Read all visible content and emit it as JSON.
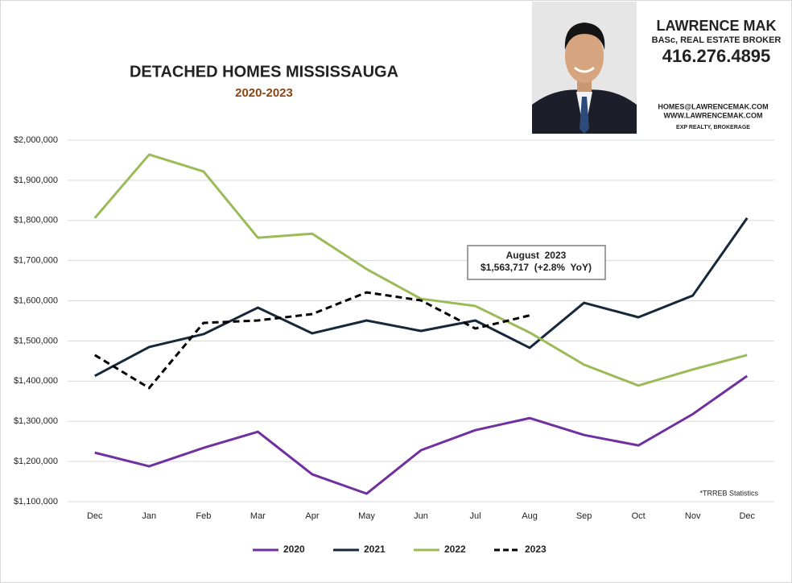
{
  "header": {
    "name": "LAWRENCE MAK",
    "credentials": "BASc, REAL ESTATE BROKER",
    "phone": "416.276.4895",
    "email": "HOMES@LAWRENCEMAK.COM",
    "website": "WWW.LAWRENCEMAK.COM",
    "brokerage": "EXP REALTY, BROKERAGE"
  },
  "chart_data": {
    "type": "line",
    "title": "DETACHED HOMES MISSISSAUGA",
    "subtitle": "2020-2023",
    "categories": [
      "Dec",
      "Jan",
      "Feb",
      "Mar",
      "Apr",
      "May",
      "Jun",
      "Jul",
      "Aug",
      "Sep",
      "Oct",
      "Nov",
      "Dec"
    ],
    "series": [
      {
        "name": "2020",
        "color": "#7030a0",
        "dashed": false,
        "values": [
          1222000,
          1188000,
          1234000,
          1274000,
          1168000,
          1120000,
          1228000,
          1278000,
          1308000,
          1266000,
          1240000,
          1318000,
          1413000
        ]
      },
      {
        "name": "2021",
        "color": "#17283a",
        "dashed": false,
        "values": [
          1413000,
          1485000,
          1517000,
          1583000,
          1519000,
          1551000,
          1525000,
          1551000,
          1483000,
          1595000,
          1559000,
          1613000,
          1806000
        ]
      },
      {
        "name": "2022",
        "color": "#9bbb59",
        "dashed": false,
        "values": [
          1806000,
          1964000,
          1922000,
          1757000,
          1767000,
          1679000,
          1605000,
          1587000,
          1521000,
          1441000,
          1389000,
          1429000,
          1465000
        ]
      },
      {
        "name": "2023",
        "color": "#000000",
        "dashed": true,
        "values": [
          1465000,
          1383000,
          1545000,
          1551000,
          1567000,
          1621000,
          1601000,
          1531000,
          1563717,
          null,
          null,
          null,
          null
        ]
      }
    ],
    "ylim": [
      1100000,
      2000000
    ],
    "yticks": [
      {
        "value": 1100000,
        "label": "$1,100,000"
      },
      {
        "value": 1200000,
        "label": "$1,200,000"
      },
      {
        "value": 1300000,
        "label": "$1,300,000"
      },
      {
        "value": 1400000,
        "label": "$1,400,000"
      },
      {
        "value": 1500000,
        "label": "$1,500,000"
      },
      {
        "value": 1600000,
        "label": "$1,600,000"
      },
      {
        "value": 1700000,
        "label": "$1,700,000"
      },
      {
        "value": 1800000,
        "label": "$1,800,000"
      },
      {
        "value": 1900000,
        "label": "$1,900,000"
      },
      {
        "value": 2000000,
        "label": "$2,000,000"
      }
    ],
    "grid": true,
    "annotation": [
      "August  2023",
      "$1,563,717  (+2.8%  YoY)"
    ],
    "note": "*TRREB Statistics",
    "legend": "bottom"
  }
}
